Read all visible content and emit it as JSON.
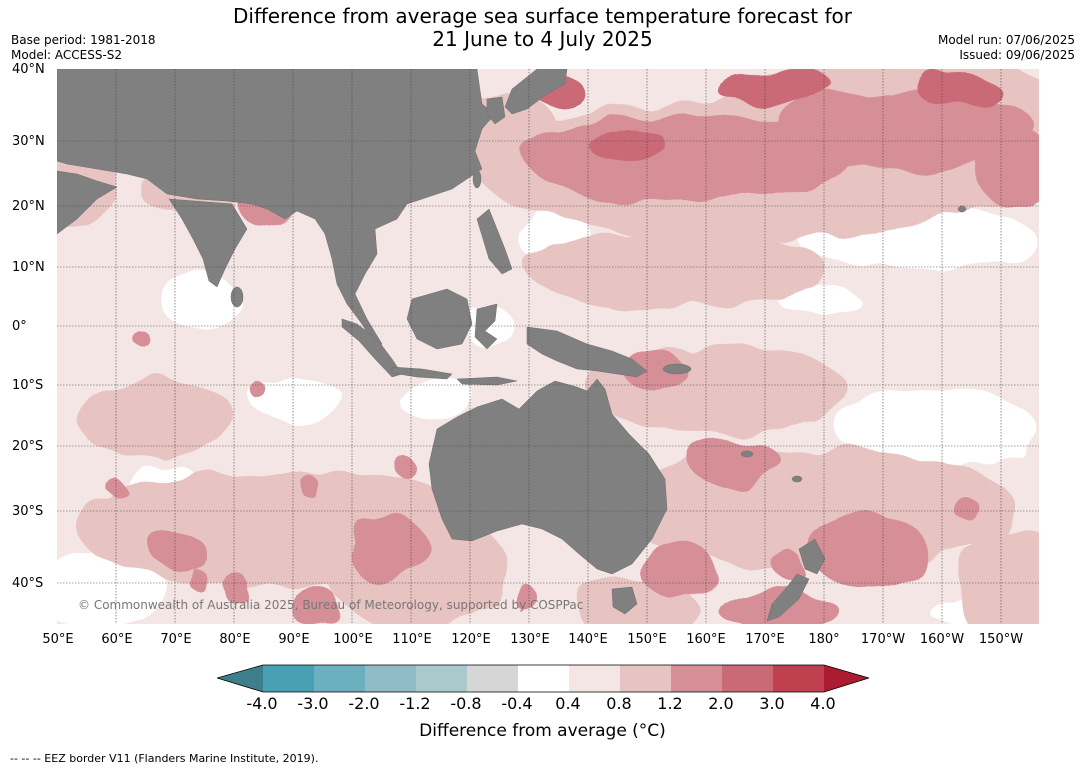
{
  "title": {
    "line1": "Difference from average sea surface temperature forecast for",
    "line2": "21 June to 4 July 2025"
  },
  "meta": {
    "base_period": "Base period: 1981-2018",
    "model": "Model: ACCESS-S2",
    "model_run": "Model run: 07/06/2025",
    "issued": "Issued: 09/06/2025"
  },
  "lat_labels": [
    "40°N",
    "30°N",
    "20°N",
    "10°N",
    "0°",
    "10°S",
    "20°S",
    "30°S",
    "40°S"
  ],
  "lon_labels": [
    "50°E",
    "60°E",
    "70°E",
    "80°E",
    "90°E",
    "100°E",
    "110°E",
    "120°E",
    "130°E",
    "140°E",
    "150°E",
    "160°E",
    "170°E",
    "180°",
    "170°W",
    "160°W",
    "150°W"
  ],
  "copyright": "© Commonwealth of Australia 2025, Bureau of Meteorology, supported by COSPPac",
  "colorbar": {
    "title": "Difference from average (°C)",
    "ticks": [
      "-4.0",
      "-3.0",
      "-2.0",
      "-1.2",
      "-0.8",
      "-0.4",
      "0.4",
      "0.8",
      "1.2",
      "2.0",
      "3.0",
      "4.0"
    ],
    "colors": [
      "#3d7f8b",
      "#48a0b4",
      "#6cb0bf",
      "#8fbcc7",
      "#a9c9cd",
      "#d6d6d6",
      "#ffffff",
      "#f4e6e5",
      "#e7c4c1",
      "#d68f97",
      "#c96a76",
      "#bf4150",
      "#ab1c33"
    ]
  },
  "legend": {
    "land_color": "#808080"
  },
  "footer": "--  --  -- EEZ border V11 (Flanders Marine Institute, 2019)."
}
